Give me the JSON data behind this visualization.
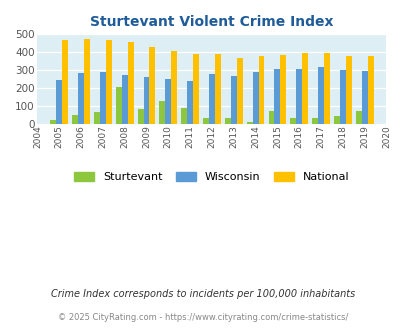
{
  "title": "Sturtevant Violent Crime Index",
  "years": [
    2004,
    2005,
    2006,
    2007,
    2008,
    2009,
    2010,
    2011,
    2012,
    2013,
    2014,
    2015,
    2016,
    2017,
    2018,
    2019,
    2020
  ],
  "sturtevant": [
    null,
    20,
    50,
    65,
    208,
    85,
    130,
    90,
    32,
    32,
    13,
    73,
    32,
    32,
    45,
    75,
    null
  ],
  "wisconsin": [
    null,
    245,
    285,
    292,
    273,
    260,
    250,
    240,
    281,
    270,
    292,
    306,
    306,
    317,
    299,
    294,
    null
  ],
  "national": [
    null,
    470,
    473,
    467,
    455,
    432,
    405,
    390,
    390,
    367,
    377,
    383,
    398,
    394,
    380,
    380,
    null
  ],
  "color_sturtevant": "#8dc63f",
  "color_wisconsin": "#5b9bd5",
  "color_national": "#ffc000",
  "bg_color": "#ddeef4",
  "title_color": "#1f5c99",
  "ylim": [
    0,
    500
  ],
  "yticks": [
    0,
    100,
    200,
    300,
    400,
    500
  ],
  "legend_labels": [
    "Sturtevant",
    "Wisconsin",
    "National"
  ],
  "footnote1": "Crime Index corresponds to incidents per 100,000 inhabitants",
  "footnote2": "© 2025 CityRating.com - https://www.cityrating.com/crime-statistics/",
  "bar_width": 0.27
}
